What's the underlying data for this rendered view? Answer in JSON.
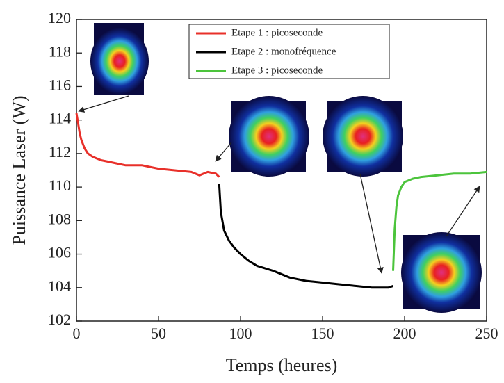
{
  "chart_data": {
    "type": "line",
    "xlabel": "Temps (heures)",
    "ylabel": "Puissance Laser (W)",
    "xlim": [
      0,
      250
    ],
    "xticks": [
      0,
      50,
      100,
      150,
      200,
      250
    ],
    "ylim": [
      102,
      120
    ],
    "yticks": [
      102,
      104,
      106,
      108,
      110,
      112,
      114,
      116,
      118,
      120
    ],
    "legend": "top",
    "series": [
      {
        "name": "Etape 1 : picoseconde",
        "color": "#e8302a",
        "x": [
          0,
          1,
          2,
          3,
          5,
          7,
          10,
          15,
          20,
          25,
          30,
          40,
          50,
          60,
          70,
          75,
          80,
          85,
          87
        ],
        "values": [
          114.4,
          113.8,
          113.2,
          112.8,
          112.3,
          112.0,
          111.8,
          111.6,
          111.5,
          111.4,
          111.3,
          111.3,
          111.1,
          111.0,
          110.9,
          110.7,
          110.9,
          110.8,
          110.6
        ]
      },
      {
        "name": "Etape 2 : monofréquence",
        "color": "#000000",
        "x": [
          87,
          88,
          90,
          93,
          96,
          100,
          105,
          110,
          120,
          130,
          140,
          150,
          160,
          170,
          180,
          190,
          193
        ],
        "values": [
          110.2,
          108.5,
          107.4,
          106.8,
          106.4,
          106.0,
          105.6,
          105.3,
          105.0,
          104.6,
          104.4,
          104.3,
          104.2,
          104.1,
          104.0,
          104.0,
          104.1
        ]
      },
      {
        "name": "Etape 3 : picoseconde",
        "color": "#4cc43c",
        "x": [
          193,
          194,
          195,
          196,
          198,
          200,
          205,
          210,
          220,
          230,
          240,
          250
        ],
        "values": [
          105.0,
          107.5,
          108.8,
          109.5,
          110.0,
          110.3,
          110.5,
          110.6,
          110.7,
          110.8,
          110.8,
          110.9
        ]
      }
    ]
  }
}
